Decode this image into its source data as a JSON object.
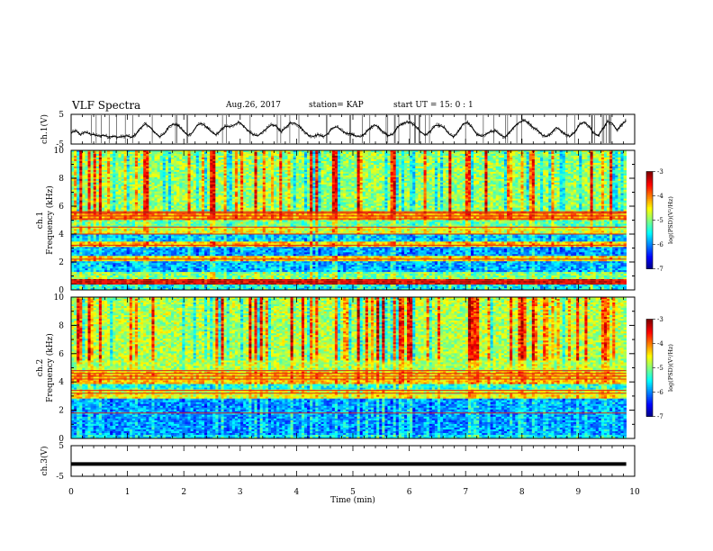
{
  "header": {
    "title": "VLF Spectra",
    "date": "Aug.26, 2017",
    "station": "station= KAP",
    "start": "start  UT =   15: 0  : 1"
  },
  "chart_data": [
    {
      "type": "line",
      "panel": "ch1-waveform",
      "ylabel": "ch.1(V)",
      "ylim": [
        -5,
        5
      ],
      "y_ticks": [
        "5",
        "-5"
      ],
      "x_range_min": [
        0,
        9.85
      ],
      "series": [
        {
          "values": [
            -1.2,
            -0.5,
            -1.8,
            -0.9,
            -1.6,
            -1.9,
            -2.3,
            -2.0,
            -2.6,
            -2.4,
            -2.7,
            -2.5,
            -2.2,
            -2.8,
            -1.5,
            0.6,
            1.8,
            0.5,
            -1.2,
            -2.5,
            -1.5,
            1.0,
            1.7,
            1.2,
            -0.5,
            -2.1,
            -1.2,
            1.3,
            1.9,
            0.8,
            -0.8,
            -1.9,
            -0.6,
            1.0,
            0.8,
            1.5,
            2.4,
            1.0,
            -0.6,
            -1.8,
            -2.3,
            -1.0,
            0.3,
            1.5,
            1.0,
            -0.9,
            0.5,
            2.1,
            2.0,
            0.9,
            -0.8,
            -2.2,
            -2.4,
            -1.8,
            -2.5,
            -1.6,
            0.4,
            0.8,
            -0.5,
            -1.4,
            -1.6,
            -2.2,
            -2.6,
            -1.4,
            0.2,
            1.5,
            0.6,
            -1.2,
            -2.2,
            -1.6,
            0.8,
            1.8,
            2.4,
            2.0,
            0.8,
            -1.0,
            -2.0,
            -0.7,
            1.2,
            1.3,
            0.5,
            -1.6,
            -2.6,
            -0.8,
            1.8,
            2.3,
            0.5,
            -1.8,
            -2.4,
            -1.6,
            -0.8,
            -0.5,
            -2.0,
            -2.6,
            -1.0,
            0.9,
            2.2,
            3.0,
            2.3,
            0.6,
            -0.3,
            -2.0,
            -2.5,
            -1.1,
            0.6,
            -0.5,
            -1.8,
            -2.4,
            -0.9,
            1.6,
            2.4,
            1.0,
            -1.3,
            -2.2,
            0.2,
            2.6,
            2.0,
            -0.3,
            1.5,
            2.9
          ]
        }
      ]
    },
    {
      "type": "heatmap",
      "panel": "ch1-spectrogram",
      "ylabel_line1": "ch.1",
      "ylabel_line2": "Frequency (kHz)",
      "ylim": [
        0,
        10
      ],
      "y_ticks": [
        "0",
        "2",
        "4",
        "6",
        "8",
        "10"
      ],
      "x_range_min": [
        0,
        9.85
      ],
      "color_scale": {
        "label": "log(PSD)(V²/Hz)",
        "range": [
          -7,
          -3
        ],
        "ticks": [
          "-3",
          "-4",
          "-5",
          "-6",
          "-7"
        ]
      },
      "background_level": -5.3,
      "band_levels": [
        {
          "freq_khz": [
            0.0,
            0.35
          ],
          "level": -5.5
        },
        {
          "freq_khz": [
            0.35,
            0.75
          ],
          "level": -3.3
        },
        {
          "freq_khz": [
            0.75,
            1.3
          ],
          "level": -5.0
        },
        {
          "freq_khz": [
            1.3,
            2.0
          ],
          "level": -5.8
        },
        {
          "freq_khz": [
            2.0,
            2.4
          ],
          "level": -4.4
        },
        {
          "freq_khz": [
            2.4,
            3.1
          ],
          "level": -5.9
        },
        {
          "freq_khz": [
            3.1,
            3.4
          ],
          "level": -4.3
        },
        {
          "freq_khz": [
            3.4,
            4.0
          ],
          "level": -5.7
        },
        {
          "freq_khz": [
            4.0,
            4.5
          ],
          "level": -4.6
        },
        {
          "freq_khz": [
            4.5,
            5.0
          ],
          "level": -5.1
        },
        {
          "freq_khz": [
            5.0,
            5.6
          ],
          "level": -4.1
        },
        {
          "freq_khz": [
            5.6,
            10.0
          ],
          "level": -4.9
        }
      ],
      "strong_lines_khz": [
        0.5,
        0.65,
        2.2,
        3.2,
        4.0,
        4.5,
        5.1,
        5.3,
        5.5,
        5.6
      ]
    },
    {
      "type": "heatmap",
      "panel": "ch2-spectrogram",
      "ylabel_line1": "ch.2",
      "ylabel_line2": "Frequency (kHz)",
      "ylim": [
        0,
        10
      ],
      "y_ticks": [
        "0",
        "2",
        "4",
        "6",
        "8",
        "10"
      ],
      "x_range_min": [
        0,
        9.85
      ],
      "color_scale": {
        "label": "log(PSD)(V²/Hz)",
        "range": [
          -7,
          -3
        ],
        "ticks": [
          "-3",
          "-4",
          "-5",
          "-6",
          "-7"
        ]
      },
      "background_level": -5.3,
      "band_levels": [
        {
          "freq_khz": [
            0.0,
            0.3
          ],
          "level": -5.6
        },
        {
          "freq_khz": [
            0.3,
            2.8
          ],
          "level": -5.9
        },
        {
          "freq_khz": [
            2.8,
            3.5
          ],
          "level": -4.6
        },
        {
          "freq_khz": [
            3.5,
            3.9
          ],
          "level": -5.4
        },
        {
          "freq_khz": [
            3.9,
            4.8
          ],
          "level": -4.3
        },
        {
          "freq_khz": [
            4.8,
            10.0
          ],
          "level": -4.8
        }
      ],
      "strong_lines_khz": [
        1.8,
        3.2,
        3.4,
        4.2,
        4.4,
        4.6,
        4.8
      ]
    },
    {
      "type": "line",
      "panel": "ch3-waveform",
      "ylabel": "ch.3(V)",
      "xlabel": "Time (min)",
      "ylim": [
        -5,
        5
      ],
      "y_ticks": [
        "5",
        "-5"
      ],
      "xlim": [
        0,
        10
      ],
      "x_ticks": [
        "0",
        "1",
        "2",
        "3",
        "4",
        "5",
        "6",
        "7",
        "8",
        "9",
        "10"
      ],
      "x_range_min": [
        0,
        9.85
      ],
      "series": [
        {
          "constant_value": -1.0
        }
      ]
    }
  ]
}
